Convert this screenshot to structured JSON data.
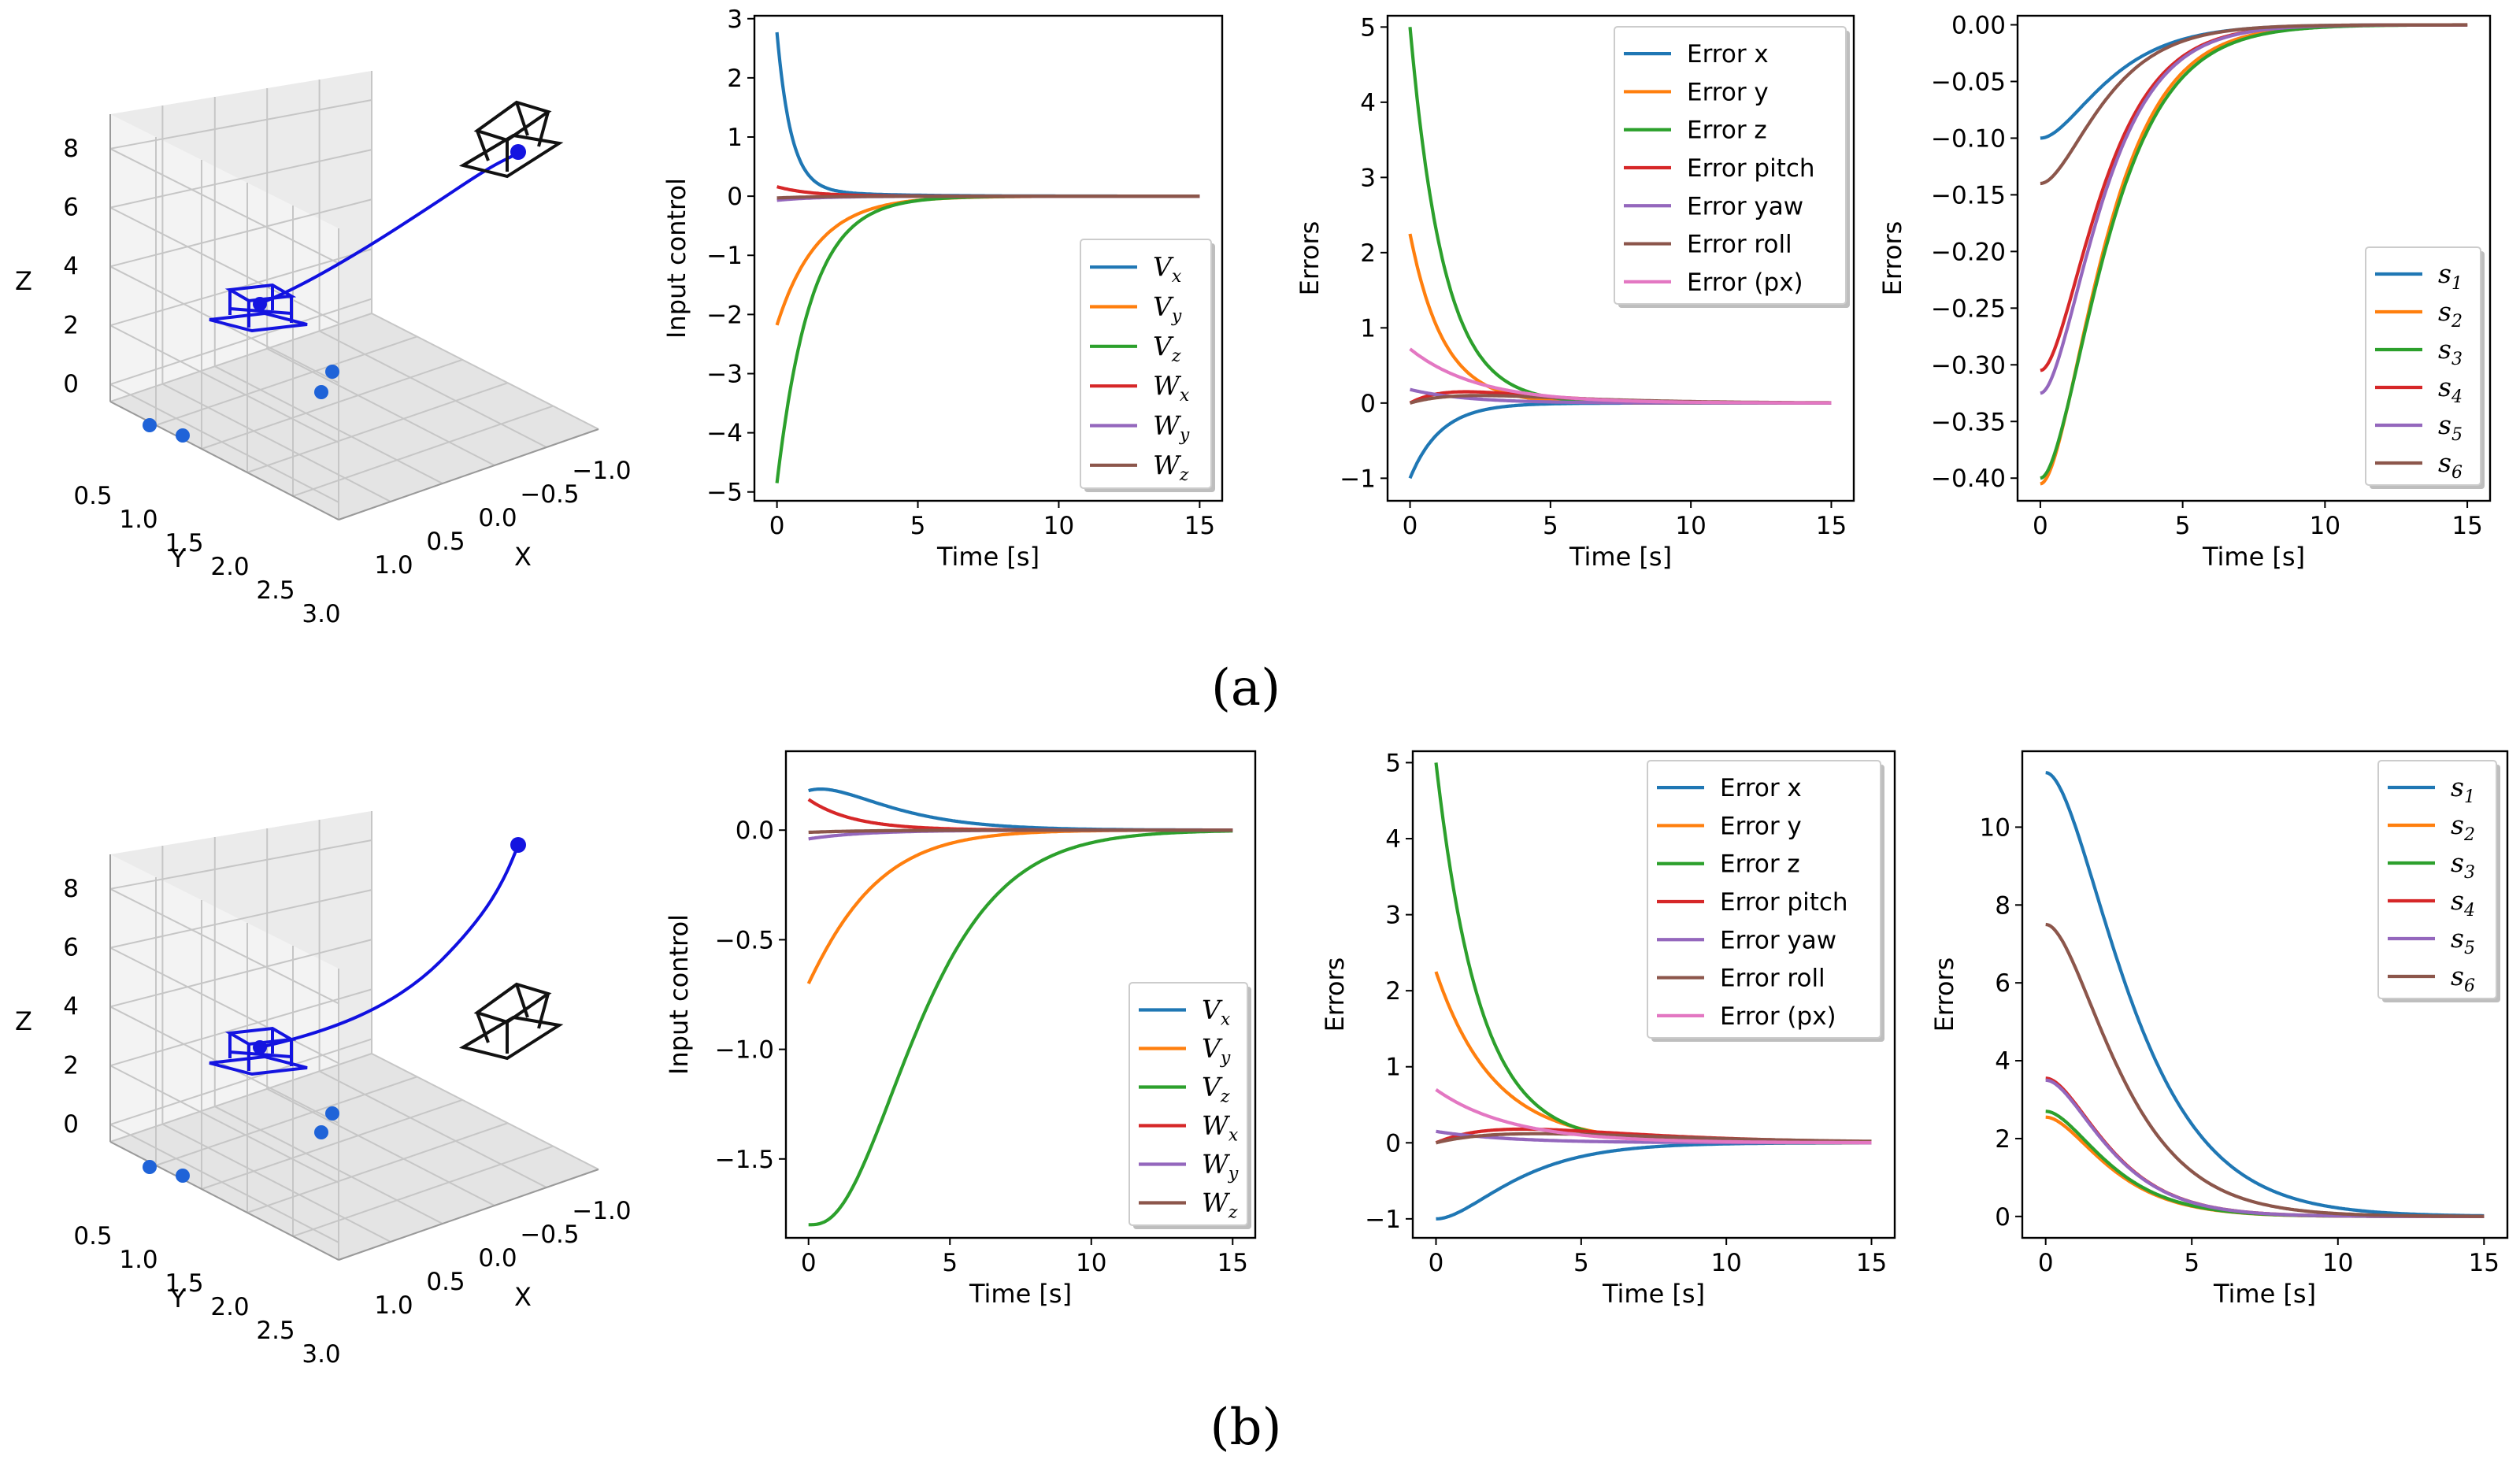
{
  "captions": {
    "a": "(a)",
    "b": "(b)"
  },
  "colors": {
    "c0": "#1f77b4",
    "c1": "#ff7f0e",
    "c2": "#2ca02c",
    "c3": "#d62728",
    "c4": "#9467bd",
    "c5": "#8c564b",
    "c6": "#e377c2",
    "traj": "#1010e0",
    "camStart": "#1414e0",
    "camEnd": "#111111",
    "points": "#1f63d8"
  },
  "plot3d": {
    "x_label": "X",
    "y_label": "Y",
    "z_label": "Z",
    "x_ticks": [
      "1.0",
      "0.5",
      "0.0",
      "−0.5",
      "−1.0"
    ],
    "y_ticks": [
      "0.5",
      "1.0",
      "1.5",
      "2.0",
      "2.5",
      "3.0"
    ],
    "z_ticks": [
      "0",
      "2",
      "4",
      "6",
      "8"
    ]
  },
  "chart_data": [
    {
      "id": "a_input",
      "row": "a",
      "type": "line",
      "xlabel": "Time [s]",
      "ylabel": "Input control",
      "xlim": [
        -0.8,
        15.8
      ],
      "ylim": [
        -5.15,
        3.05
      ],
      "xticks": [
        "0",
        "5",
        "10",
        "15"
      ],
      "yticks": [
        "-5",
        "-4",
        "-3",
        "-2",
        "-1",
        "0",
        "1",
        "2",
        "3"
      ],
      "legend": "lower-right",
      "series": [
        {
          "name": "V_x",
          "color": "c0",
          "fn": "exp",
          "a": 2.65,
          "tau": 0.5,
          "c": 0,
          "b": 0.12,
          "tau2": 2.5
        },
        {
          "name": "V_y",
          "color": "c1",
          "fn": "exp",
          "a": -2.18,
          "tau": 1.45,
          "c": 0
        },
        {
          "name": "V_z",
          "color": "c2",
          "fn": "exp",
          "a": -4.85,
          "tau": 1.2,
          "c": 0
        },
        {
          "name": "W_x",
          "color": "c3",
          "fn": "exp",
          "a": 0.16,
          "tau": 1.2,
          "c": 0
        },
        {
          "name": "W_y",
          "color": "c4",
          "fn": "exp",
          "a": -0.07,
          "tau": 1.5,
          "c": 0
        },
        {
          "name": "W_z",
          "color": "c5",
          "fn": "exp",
          "a": -0.03,
          "tau": 1.5,
          "c": 0
        }
      ]
    },
    {
      "id": "a_err",
      "row": "a",
      "type": "line",
      "xlabel": "Time [s]",
      "ylabel": "Errors",
      "xlim": [
        -0.8,
        15.8
      ],
      "ylim": [
        -1.3,
        5.15
      ],
      "xticks": [
        "0",
        "5",
        "10",
        "15"
      ],
      "yticks": [
        "-1",
        "0",
        "1",
        "2",
        "3",
        "4",
        "5"
      ],
      "legend": "top-right",
      "series": [
        {
          "name": "Error x",
          "color": "c0",
          "fn": "exp",
          "a": -1.0,
          "tau": 1.1,
          "c": 0
        },
        {
          "name": "Error y",
          "color": "c1",
          "fn": "exp",
          "a": 2.25,
          "tau": 1.2,
          "c": 0
        },
        {
          "name": "Error z",
          "color": "c2",
          "fn": "exp",
          "a": 5.0,
          "tau": 1.2,
          "c": 0
        },
        {
          "name": "Error pitch",
          "color": "c3",
          "fn": "hump",
          "a": 0.0,
          "h": 0.15,
          "tp": 2.0,
          "tau": 1.8
        },
        {
          "name": "Error yaw",
          "color": "c4",
          "fn": "exp",
          "a": 0.18,
          "tau": 2.0,
          "c": 0
        },
        {
          "name": "Error roll",
          "color": "c5",
          "fn": "hump",
          "a": 0.0,
          "h": 0.1,
          "tp": 2.5,
          "tau": 2.0
        },
        {
          "name": "Error (px)",
          "color": "c6",
          "fn": "exp",
          "a": 0.72,
          "tau": 2.4,
          "c": 0
        }
      ]
    },
    {
      "id": "a_s",
      "row": "a",
      "type": "line",
      "xlabel": "Time [s]",
      "ylabel": "Errors",
      "xlim": [
        -0.8,
        15.8
      ],
      "ylim": [
        -0.42,
        0.008
      ],
      "xticks": [
        "0",
        "5",
        "10",
        "15"
      ],
      "yticks": [
        "0.00",
        "-0.05",
        "-0.10",
        "-0.15",
        "-0.20",
        "-0.25",
        "-0.30",
        "-0.35",
        "-0.40"
      ],
      "legend": "lower-right",
      "series": [
        {
          "name": "s_1",
          "color": "c0",
          "fn": "sig",
          "a": -0.1,
          "tau": 1.4
        },
        {
          "name": "s_2",
          "color": "c1",
          "fn": "sig",
          "a": -0.405,
          "tau": 1.3
        },
        {
          "name": "s_3",
          "color": "c2",
          "fn": "sig",
          "a": -0.4,
          "tau": 1.35
        },
        {
          "name": "s_4",
          "color": "c3",
          "fn": "sig",
          "a": -0.305,
          "tau": 1.25
        },
        {
          "name": "s_5",
          "color": "c4",
          "fn": "sig",
          "a": -0.325,
          "tau": 1.25
        },
        {
          "name": "s_6",
          "color": "c5",
          "fn": "sig",
          "a": -0.14,
          "tau": 1.3
        }
      ]
    },
    {
      "id": "b_input",
      "row": "b",
      "type": "line",
      "xlabel": "Time [s]",
      "ylabel": "Input control",
      "xlim": [
        -0.8,
        15.8
      ],
      "ylim": [
        -1.86,
        0.36
      ],
      "xticks": [
        "0",
        "5",
        "10",
        "15"
      ],
      "yticks": [
        "0.0",
        "-0.5",
        "-1.0",
        "-1.5"
      ],
      "legend": "lower-right",
      "series": [
        {
          "name": "V_x",
          "color": "c0",
          "fn": "vxb"
        },
        {
          "name": "V_y",
          "color": "c1",
          "fn": "vyb"
        },
        {
          "name": "V_z",
          "color": "c2",
          "fn": "vzb"
        },
        {
          "name": "W_x",
          "color": "c3",
          "fn": "exp",
          "a": 0.14,
          "tau": 1.6,
          "c": 0
        },
        {
          "name": "W_y",
          "color": "c4",
          "fn": "exp",
          "a": -0.04,
          "tau": 2.0,
          "c": 0
        },
        {
          "name": "W_z",
          "color": "c5",
          "fn": "exp",
          "a": -0.01,
          "tau": 2.0,
          "c": 0
        }
      ]
    },
    {
      "id": "b_err",
      "row": "b",
      "type": "line",
      "xlabel": "Time [s]",
      "ylabel": "Errors",
      "xlim": [
        -0.8,
        15.8
      ],
      "ylim": [
        -1.25,
        5.15
      ],
      "xticks": [
        "0",
        "5",
        "10",
        "15"
      ],
      "yticks": [
        "-1",
        "0",
        "1",
        "2",
        "3",
        "4",
        "5"
      ],
      "legend": "top-right",
      "series": [
        {
          "name": "Error x",
          "color": "c0",
          "fn": "sigs",
          "a": -1.0,
          "tau": 1.6
        },
        {
          "name": "Error y",
          "color": "c1",
          "fn": "exp",
          "a": 2.25,
          "tau": 2.0,
          "c": 0
        },
        {
          "name": "Error z",
          "color": "c2",
          "fn": "exp",
          "a": 5.0,
          "tau": 1.5,
          "c": 0
        },
        {
          "name": "Error pitch",
          "color": "c3",
          "fn": "hump",
          "a": 0.0,
          "h": 0.18,
          "tp": 3.0,
          "tau": 2.0
        },
        {
          "name": "Error yaw",
          "color": "c4",
          "fn": "exp",
          "a": 0.15,
          "tau": 2.5,
          "c": 0
        },
        {
          "name": "Error roll",
          "color": "c5",
          "fn": "hump",
          "a": 0.0,
          "h": 0.12,
          "tp": 3.5,
          "tau": 2.2
        },
        {
          "name": "Error (px)",
          "color": "c6",
          "fn": "exp",
          "a": 0.7,
          "tau": 2.6,
          "c": 0
        }
      ]
    },
    {
      "id": "b_s",
      "row": "b",
      "type": "line",
      "xlabel": "Time [s]",
      "ylabel": "Errors",
      "xlim": [
        -0.8,
        15.8
      ],
      "ylim": [
        -0.55,
        11.95
      ],
      "xticks": [
        "0",
        "5",
        "10",
        "15"
      ],
      "yticks": [
        "0",
        "2",
        "4",
        "6",
        "8",
        "10"
      ],
      "legend": "top-right",
      "series": [
        {
          "name": "s_1",
          "color": "c0",
          "fn": "dec",
          "a": 11.4,
          "tau": 1.7
        },
        {
          "name": "s_2",
          "color": "c1",
          "fn": "dec",
          "a": 2.55,
          "tau": 1.3
        },
        {
          "name": "s_3",
          "color": "c2",
          "fn": "dec",
          "a": 2.7,
          "tau": 1.3
        },
        {
          "name": "s_4",
          "color": "c3",
          "fn": "dec",
          "a": 3.55,
          "tau": 1.3
        },
        {
          "name": "s_5",
          "color": "c4",
          "fn": "dec",
          "a": 3.5,
          "tau": 1.3
        },
        {
          "name": "s_6",
          "color": "c5",
          "fn": "dec",
          "a": 7.5,
          "tau": 1.5
        }
      ]
    }
  ]
}
